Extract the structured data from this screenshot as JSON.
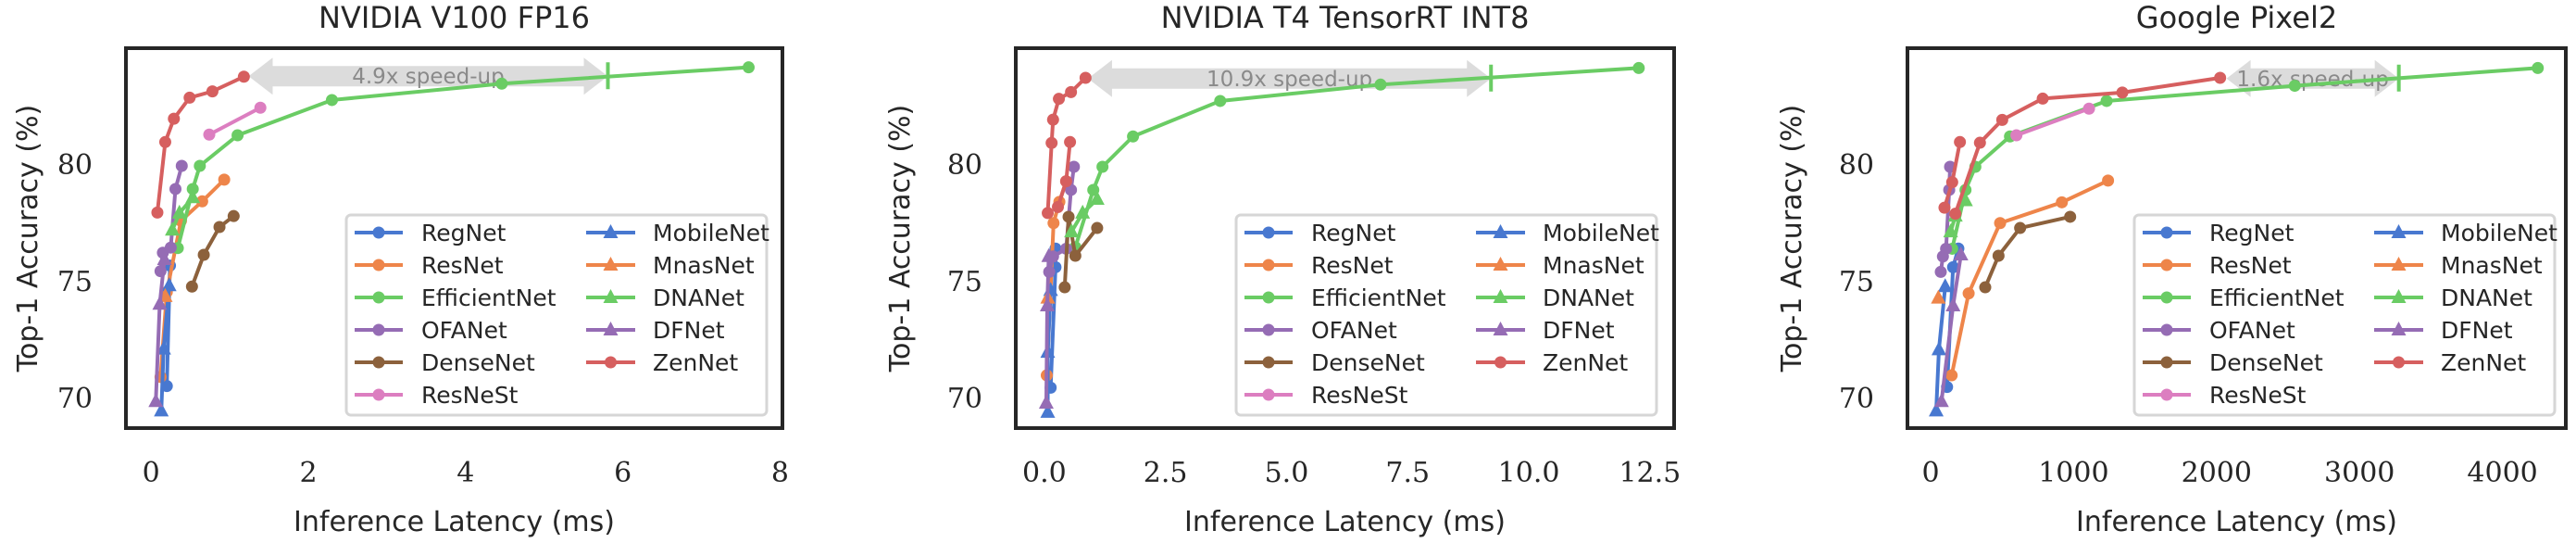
{
  "chart_data": [
    {
      "type": "line",
      "title": "NVIDIA V100 FP16",
      "xlabel": "Inference Latency (ms)",
      "ylabel": "Top-1 Accuracy (%)",
      "xlim": [
        -0.32,
        8.03
      ],
      "ylim": [
        68.69,
        84.96
      ],
      "xticks": [
        "0",
        "2",
        "4",
        "6",
        "8"
      ],
      "xtick_values": [
        0,
        2,
        4,
        6,
        8
      ],
      "yticks": [
        "70",
        "75",
        "80"
      ],
      "ytick_values": [
        70,
        75,
        80
      ],
      "grid": false,
      "legend_placement": "lower-right",
      "annotation": {
        "text": "4.9x speed-up",
        "from_x": 5.81,
        "to_x": 1.24,
        "y": 83.76
      },
      "series": [
        {
          "name": "RegNet",
          "segments": [
            [
              [
                0.2,
                70.49
              ],
              [
                0.24,
                75.65
              ]
            ]
          ]
        },
        {
          "name": "ResNet",
          "segments": [
            [
              [
                0.12,
                70.88
              ],
              [
                0.2,
                74.52
              ],
              [
                0.38,
                77.57
              ],
              [
                0.65,
                78.4
              ],
              [
                0.93,
                79.33
              ]
            ]
          ]
        },
        {
          "name": "EfficientNet",
          "segments": [
            [
              [
                0.34,
                76.4
              ],
              [
                0.53,
                78.93
              ],
              [
                0.62,
                79.92
              ],
              [
                1.1,
                81.23
              ],
              [
                2.3,
                82.74
              ],
              [
                4.46,
                83.44
              ],
              [
                7.6,
                84.14
              ]
            ]
          ]
        },
        {
          "name": "OFANet",
          "segments": [
            [
              [
                0.12,
                75.41
              ],
              [
                0.15,
                76.2
              ],
              [
                0.25,
                76.42
              ],
              [
                0.31,
                78.93
              ],
              [
                0.39,
                79.92
              ]
            ]
          ]
        },
        {
          "name": "DenseNet",
          "segments": [
            [
              [
                0.52,
                74.75
              ],
              [
                0.67,
                76.11
              ],
              [
                0.87,
                77.3
              ],
              [
                1.05,
                77.77
              ]
            ]
          ]
        },
        {
          "name": "ResNeSt",
          "segments": [
            [
              [
                0.74,
                81.26
              ],
              [
                1.39,
                82.41
              ]
            ]
          ]
        },
        {
          "name": "MobileNet",
          "segments": [
            [
              [
                0.13,
                69.43
              ],
              [
                0.16,
                72.08
              ],
              [
                0.23,
                74.79
              ]
            ]
          ]
        },
        {
          "name": "MnasNet",
          "segments": [
            [
              [
                0.18,
                74.33
              ]
            ]
          ]
        },
        {
          "name": "DNANet",
          "segments": [
            [
              [
                0.27,
                77.17
              ],
              [
                0.36,
                77.9
              ],
              [
                0.53,
                78.56
              ]
            ]
          ]
        },
        {
          "name": "DFNet",
          "segments": [
            [
              [
                0.06,
                69.83
              ],
              [
                0.11,
                74.0
              ],
              [
                0.17,
                75.91
              ]
            ]
          ]
        },
        {
          "name": "ZenNet",
          "segments": [
            [
              [
                0.08,
                77.92
              ],
              [
                0.18,
                80.94
              ],
              [
                0.29,
                81.94
              ],
              [
                0.49,
                82.84
              ],
              [
                0.78,
                83.11
              ],
              [
                1.18,
                83.74
              ]
            ]
          ]
        }
      ]
    },
    {
      "type": "line",
      "title": "NVIDIA T4 TensorRT INT8",
      "xlabel": "Inference Latency (ms)",
      "ylabel": "Top-1 Accuracy (%)",
      "xlim": [
        -0.59,
        13.0
      ],
      "ylim": [
        68.69,
        84.96
      ],
      "xticks": [
        "0.0",
        "2.5",
        "5.0",
        "7.5",
        "10.0",
        "12.5"
      ],
      "xtick_values": [
        0,
        2.5,
        5,
        7.5,
        10,
        12.5
      ],
      "yticks": [
        "70",
        "75",
        "80"
      ],
      "ytick_values": [
        70,
        75,
        80
      ],
      "grid": false,
      "legend_placement": "lower-right",
      "annotation": {
        "text": "10.9x speed-up",
        "from_x": 9.22,
        "to_x": 0.9,
        "y": 83.66
      },
      "series": [
        {
          "name": "RegNet",
          "segments": [
            [
              [
                0.13,
                70.42
              ],
              [
                0.23,
                75.58
              ],
              [
                0.23,
                76.38
              ]
            ]
          ]
        },
        {
          "name": "ResNet",
          "segments": [
            [
              [
                0.05,
                70.95
              ],
              [
                0.19,
                77.47
              ],
              [
                0.31,
                78.38
              ],
              [
                0.45,
                79.26
              ]
            ]
          ]
        },
        {
          "name": "EfficientNet",
          "segments": [
            [
              [
                0.64,
                76.44
              ],
              [
                1.01,
                78.89
              ],
              [
                1.2,
                79.88
              ],
              [
                1.83,
                81.18
              ],
              [
                3.63,
                82.7
              ],
              [
                6.94,
                83.4
              ],
              [
                12.27,
                84.11
              ]
            ]
          ]
        },
        {
          "name": "OFANet",
          "segments": [
            [
              [
                0.1,
                75.38
              ],
              [
                0.18,
                76.04
              ],
              [
                0.45,
                76.37
              ],
              [
                0.55,
                78.89
              ],
              [
                0.61,
                79.88
              ]
            ]
          ]
        },
        {
          "name": "DenseNet",
          "segments": [
            [
              [
                0.42,
                74.72
              ],
              [
                0.5,
                77.74
              ],
              [
                0.64,
                76.07
              ],
              [
                1.09,
                77.26
              ]
            ]
          ]
        },
        {
          "name": "MobileNet",
          "segments": [
            [
              [
                0.07,
                69.37
              ],
              [
                0.07,
                71.94
              ],
              [
                0.13,
                74.59
              ]
            ]
          ]
        },
        {
          "name": "MnasNet",
          "segments": [
            [
              [
                0.07,
                74.26
              ]
            ]
          ]
        },
        {
          "name": "DNANet",
          "segments": [
            [
              [
                0.56,
                77.1
              ],
              [
                0.79,
                77.9
              ],
              [
                1.09,
                78.49
              ]
            ]
          ]
        },
        {
          "name": "DFNet",
          "segments": [
            [
              [
                0.04,
                69.76
              ],
              [
                0.06,
                73.93
              ],
              [
                0.09,
                76.04
              ]
            ]
          ]
        },
        {
          "name": "ZenNet",
          "segments": [
            [
              [
                0.07,
                77.9
              ],
              [
                0.15,
                80.9
              ],
              [
                0.18,
                81.9
              ],
              [
                0.3,
                82.79
              ],
              [
                0.55,
                83.08
              ],
              [
                0.85,
                83.69
              ]
            ],
            [
              [
                0.28,
                78.16
              ],
              [
                0.45,
                79.26
              ],
              [
                0.53,
                80.94
              ]
            ]
          ]
        }
      ]
    },
    {
      "type": "line",
      "title": "Google Pixel2",
      "xlabel": "Inference Latency (ms)",
      "ylabel": "Top-1 Accuracy (%)",
      "xlim": [
        -162,
        4443
      ],
      "ylim": [
        68.69,
        84.96
      ],
      "xticks": [
        "0",
        "1000",
        "2000",
        "3000",
        "4000"
      ],
      "xtick_values": [
        0,
        1000,
        2000,
        3000,
        4000
      ],
      "yticks": [
        "70",
        "75",
        "80"
      ],
      "ytick_values": [
        70,
        75,
        80
      ],
      "grid": false,
      "legend_placement": "lower-right",
      "annotation": {
        "text": "1.6x speed-up",
        "from_x": 3275,
        "to_x": 2070,
        "y": 83.66
      },
      "series": [
        {
          "name": "RegNet",
          "segments": [
            [
              [
                115,
                70.45
              ],
              [
                157,
                75.58
              ],
              [
                194,
                76.38
              ]
            ]
          ]
        },
        {
          "name": "ResNet",
          "segments": [
            [
              [
                147,
                70.95
              ],
              [
                266,
                74.46
              ],
              [
                486,
                77.47
              ],
              [
                918,
                78.36
              ],
              [
                1241,
                79.29
              ]
            ]
          ]
        },
        {
          "name": "EfficientNet",
          "segments": [
            [
              [
                151,
                76.37
              ],
              [
                244,
                78.89
              ],
              [
                313,
                79.88
              ],
              [
                555,
                81.18
              ],
              [
                1231,
                82.7
              ],
              [
                2547,
                83.35
              ],
              [
                4247,
                84.11
              ]
            ]
          ]
        },
        {
          "name": "OFANet",
          "segments": [
            [
              [
                71,
                75.38
              ],
              [
                86,
                76.04
              ],
              [
                108,
                76.37
              ],
              [
                130,
                78.89
              ],
              [
                136,
                79.88
              ]
            ]
          ]
        },
        {
          "name": "DenseNet",
          "segments": [
            [
              [
                382,
                74.72
              ],
              [
                475,
                76.07
              ],
              [
                626,
                77.26
              ],
              [
                976,
                77.74
              ]
            ]
          ]
        },
        {
          "name": "ResNeSt",
          "segments": [
            [
              [
                600,
                81.23
              ],
              [
                1108,
                82.37
              ]
            ]
          ]
        },
        {
          "name": "MobileNet",
          "segments": [
            [
              [
                39,
                69.43
              ],
              [
                58,
                72.05
              ],
              [
                102,
                74.75
              ]
            ]
          ]
        },
        {
          "name": "MnasNet",
          "segments": [
            [
              [
                54,
                74.26
              ]
            ]
          ]
        },
        {
          "name": "DNANet",
          "segments": [
            [
              [
                140,
                77.1
              ],
              [
                173,
                77.77
              ],
              [
                244,
                78.43
              ]
            ]
          ]
        },
        {
          "name": "DFNet",
          "segments": [
            [
              [
                76,
                69.83
              ],
              [
                157,
                73.93
              ],
              [
                212,
                76.11
              ]
            ]
          ]
        },
        {
          "name": "ZenNet",
          "segments": [
            [
              [
                97,
                78.13
              ],
              [
                151,
                79.22
              ],
              [
                205,
                80.94
              ]
            ],
            [
              [
                173,
                77.87
              ],
              [
                345,
                80.91
              ],
              [
                501,
                81.89
              ],
              [
                784,
                82.8
              ],
              [
                1341,
                83.06
              ],
              [
                2025,
                83.69
              ]
            ]
          ]
        }
      ]
    }
  ],
  "legend": {
    "columns": [
      [
        "RegNet",
        "ResNet",
        "EfficientNet",
        "OFANet",
        "DenseNet",
        "ResNeSt"
      ],
      [
        "MobileNet",
        "MnasNet",
        "DNANet",
        "DFNet",
        "ZenNet"
      ]
    ]
  },
  "styles": {
    "RegNet": {
      "color": "#4878d0",
      "marker": "circle"
    },
    "ResNet": {
      "color": "#ee854a",
      "marker": "circle"
    },
    "EfficientNet": {
      "color": "#6acc64",
      "marker": "circle"
    },
    "OFANet": {
      "color": "#956cb4",
      "marker": "circle"
    },
    "DenseNet": {
      "color": "#8c613c",
      "marker": "circle"
    },
    "ResNeSt": {
      "color": "#dc7ec0",
      "marker": "circle"
    },
    "MobileNet": {
      "color": "#4878d0",
      "marker": "triangle"
    },
    "MnasNet": {
      "color": "#ee854a",
      "marker": "triangle"
    },
    "DNANet": {
      "color": "#6acc64",
      "marker": "triangle"
    },
    "DFNet": {
      "color": "#956cb4",
      "marker": "triangle"
    },
    "ZenNet": {
      "color": "#d65f5f",
      "marker": "circle"
    },
    "annotation_band": "#dcdcdc",
    "frame": "#262626"
  }
}
